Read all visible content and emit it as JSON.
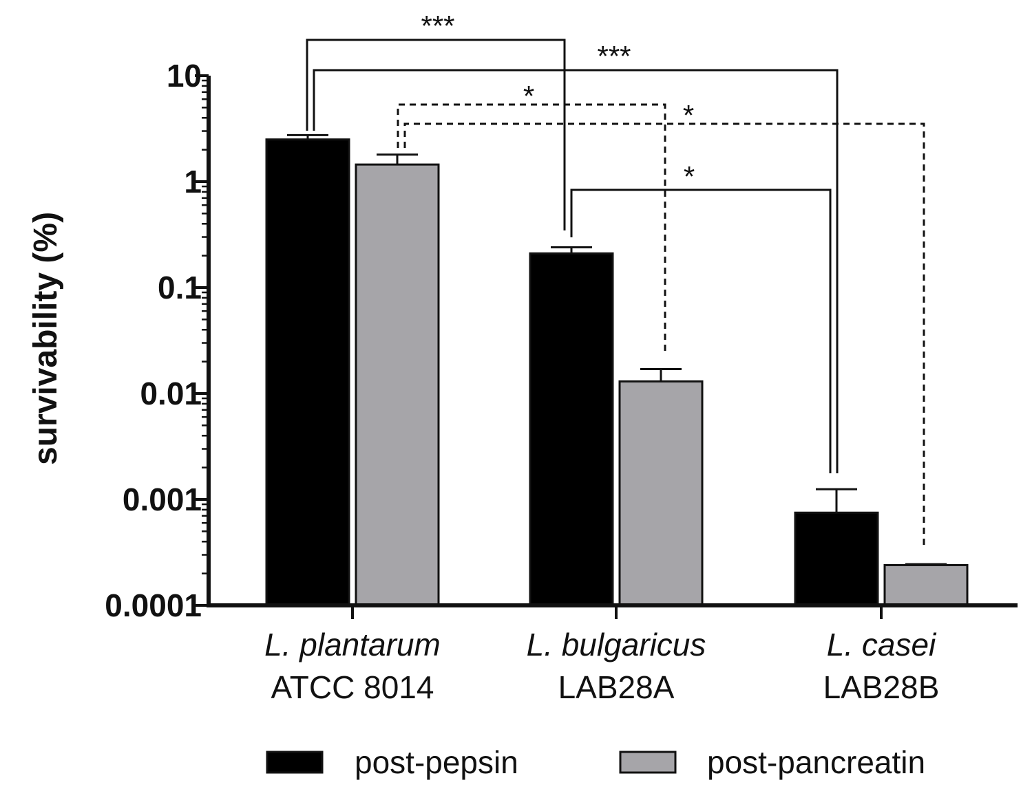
{
  "chart_data": {
    "type": "bar",
    "scale": "log",
    "ylabel": "survivability (%)",
    "ylim": [
      0.0001,
      10
    ],
    "yticks": [
      "10",
      "1",
      "0.1",
      "0.01",
      "0.001",
      "0.0001"
    ],
    "categories": [
      {
        "species": "L. plantarum",
        "strain": "ATCC 8014"
      },
      {
        "species": "L. bulgaricus",
        "strain": "LAB28A"
      },
      {
        "species": "L. casei",
        "strain": "LAB28B"
      }
    ],
    "series": [
      {
        "name": "post-pepsin",
        "color": "#000000",
        "values": [
          2.5,
          0.21,
          0.00075
        ],
        "errors_upper": [
          2.75,
          0.24,
          0.00125
        ]
      },
      {
        "name": "post-pancreatin",
        "color": "#a6a5a9",
        "values": [
          1.45,
          0.013,
          0.00024
        ],
        "errors_upper": [
          1.8,
          0.017,
          0.000245
        ]
      }
    ],
    "significance": [
      {
        "from": "L. plantarum post-pepsin",
        "to": "L. bulgaricus post-pepsin",
        "label": "***",
        "style": "solid"
      },
      {
        "from": "L. plantarum post-pepsin",
        "to": "L. casei post-pepsin",
        "label": "***",
        "style": "solid"
      },
      {
        "from": "L. plantarum post-pancreatin",
        "to": "L. bulgaricus post-pancreatin",
        "label": "*",
        "style": "dashed"
      },
      {
        "from": "L. plantarum post-pancreatin",
        "to": "L. casei post-pancreatin",
        "label": "*",
        "style": "dashed"
      },
      {
        "from": "L. bulgaricus post-pepsin",
        "to": "L. casei post-pepsin",
        "label": "*",
        "style": "solid"
      }
    ]
  }
}
